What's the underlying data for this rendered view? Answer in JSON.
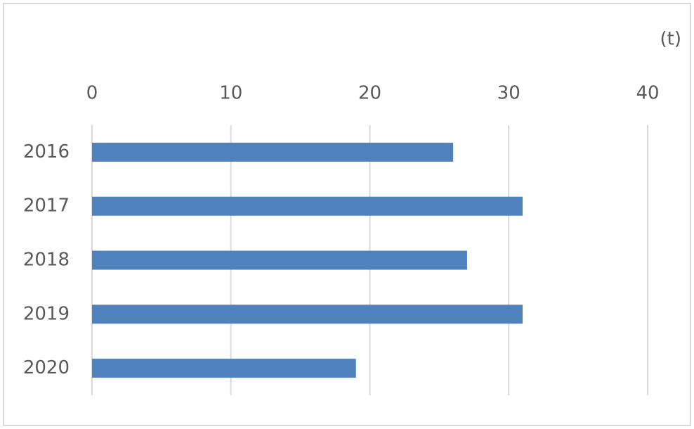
{
  "chart_data": {
    "type": "bar",
    "orientation": "horizontal",
    "unit_label": "(t)",
    "categories": [
      "2016",
      "2017",
      "2018",
      "2019",
      "2020"
    ],
    "values": [
      26,
      31,
      27,
      31,
      19
    ],
    "color": "#4f81bd",
    "xlim": [
      0,
      40
    ],
    "xticks": [
      0,
      10,
      20,
      30,
      40
    ],
    "grid": true
  }
}
